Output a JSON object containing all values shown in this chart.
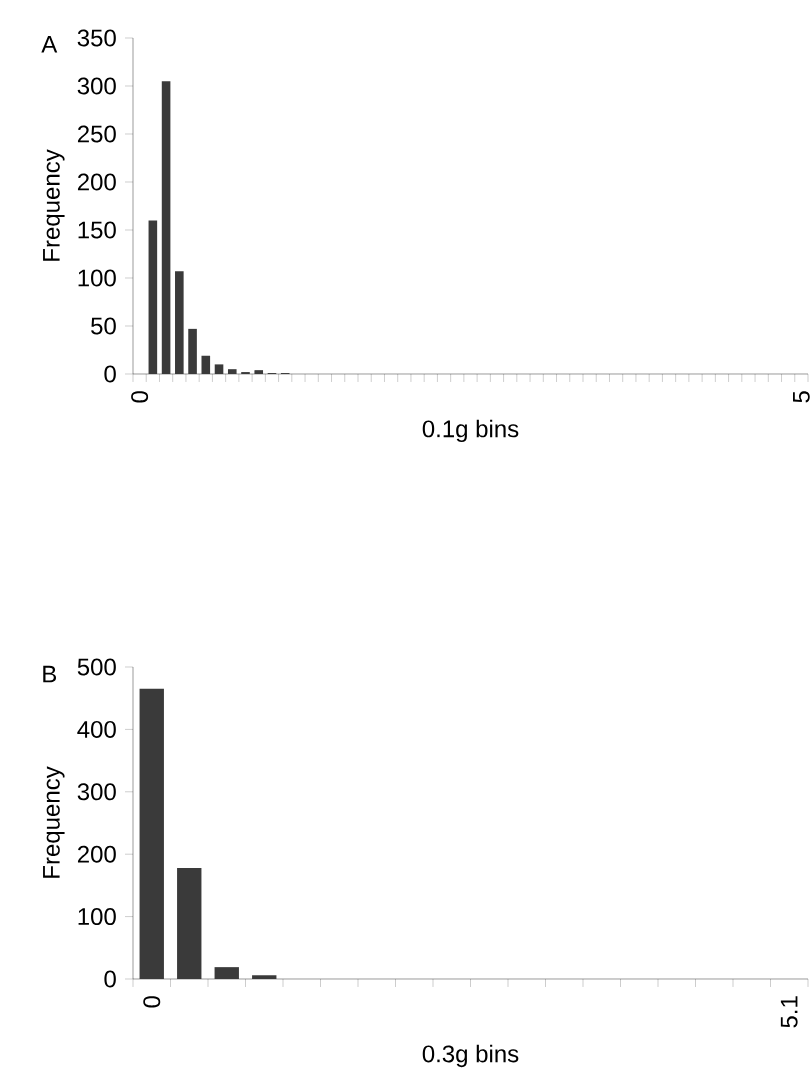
{
  "chart_data": [
    {
      "type": "bar",
      "annotations": [
        "A"
      ],
      "xlabel": "0.1g bins",
      "ylabel": "Frequency",
      "categories": [
        "0",
        null,
        null,
        null,
        null,
        null,
        null,
        null,
        null,
        null,
        null,
        null,
        null,
        null,
        null,
        null,
        null,
        null,
        null,
        null,
        null,
        null,
        null,
        null,
        null,
        null,
        null,
        null,
        null,
        null,
        null,
        null,
        null,
        null,
        null,
        null,
        null,
        null,
        null,
        null,
        null,
        null,
        null,
        null,
        null,
        null,
        null,
        null,
        null,
        null,
        "5"
      ],
      "values": [
        0,
        160,
        305,
        107,
        47,
        19,
        10,
        5,
        2,
        4,
        1,
        1,
        0,
        0,
        0,
        0,
        0,
        0,
        0,
        0,
        0,
        0,
        0,
        0,
        0,
        0,
        0,
        0,
        0,
        0,
        0,
        0,
        0,
        0,
        0,
        0,
        0,
        0,
        0,
        0,
        0,
        0,
        0,
        0,
        0,
        0,
        0,
        0,
        0,
        0,
        0
      ],
      "color": "#3a3a3a",
      "ylim": [
        0,
        350
      ],
      "yticks": [
        0,
        50,
        100,
        150,
        200,
        250,
        300,
        350
      ]
    },
    {
      "type": "bar",
      "annotations": [
        "B"
      ],
      "xlabel": "0.3g bins",
      "ylabel": "Frequency",
      "categories": [
        "0",
        null,
        null,
        null,
        null,
        null,
        null,
        null,
        null,
        null,
        null,
        null,
        null,
        null,
        null,
        null,
        null,
        "5.1"
      ],
      "values": [
        465,
        178,
        19,
        6,
        0,
        0,
        0,
        0,
        0,
        0,
        0,
        0,
        0,
        0,
        0,
        0,
        0,
        0
      ],
      "color": "#3a3a3a",
      "ylim": [
        0,
        500
      ],
      "yticks": [
        0,
        100,
        200,
        300,
        400,
        500
      ]
    }
  ]
}
